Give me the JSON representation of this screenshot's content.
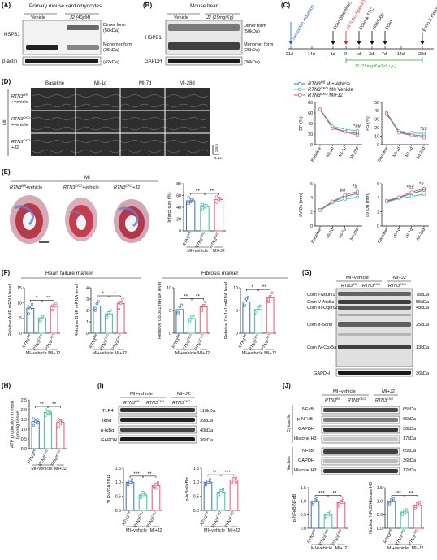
{
  "panels": {
    "A": {
      "letter": "(A)",
      "title": "Primary mouse cardiomyocytes",
      "groups": [
        "Vehicle",
        "J2 (40μM)"
      ],
      "row_labels": [
        "HSPB1",
        "β-actin"
      ],
      "band_labels": [
        "Dimer form",
        "(50kDa)",
        "Monomer form",
        "(25kDa)",
        "(42kDa)"
      ]
    },
    "B": {
      "letter": "(B)",
      "title": "Mouse heart",
      "groups": [
        "Vehicle",
        "J2 (15mg/Kg)"
      ],
      "row_labels": [
        "HSPB1",
        "GAPDH"
      ],
      "band_labels": [
        "Dimer form",
        "(50kDa)",
        "Monomer form",
        "(25kDa)",
        "(36kDa)"
      ]
    },
    "C": {
      "letter": "(C)",
      "events": [
        "Tamoxifen induction",
        "Echo (Baseline)",
        "MI (LAD ligation)",
        "Echo & TTC",
        "Histology",
        "Echo",
        "Echo & Histology"
      ],
      "ticks": [
        "-21d",
        "-14d",
        "-1d",
        "0",
        "1d",
        "3d",
        "7d",
        "-14d",
        "28d"
      ],
      "treatment": "J2 (15mg/Kg/2d, i.p.)"
    },
    "D": {
      "letter": "(D)",
      "columns": [
        "Baseline",
        "MI-1d",
        "MI-7d",
        "MI-28d"
      ],
      "side_label": "MI",
      "rows": [
        {
          "gene": "RTN3",
          "sup": "fl/fl",
          "cond": "+vehicle"
        },
        {
          "gene": "RTN3",
          "sup": "CKO",
          "cond": "+vehicle"
        },
        {
          "gene": "RTN3",
          "sup": "CKO",
          "cond": "+J2"
        }
      ],
      "scale": [
        "2mm",
        "0.1s"
      ]
    },
    "E": {
      "letter": "(E)",
      "title": "MI",
      "images": [
        {
          "gene": "RTN3",
          "sup": "fl/fl",
          "cond": "+vehicle"
        },
        {
          "gene": "RTN3",
          "sup": "CKO",
          "cond": "+vehicle"
        },
        {
          "gene": "RTN3",
          "sup": "CKO",
          "cond": "+J2"
        }
      ]
    },
    "F": {
      "letter": "(F)",
      "heart_failure_title": "Heart failure marker",
      "fibrosis_title": "Fibrosis marker"
    },
    "G": {
      "letter": "(G)",
      "groups": [
        "MI+vehicle",
        "MI+J2"
      ],
      "lanes": [
        {
          "gene": "RTN3",
          "sup": "fl/fl"
        },
        {
          "gene": "RTN3",
          "sup": "CKO"
        },
        {
          "gene": "RTN3",
          "sup": "CKO"
        }
      ],
      "left_labels": [
        "Com I-Ndufs1",
        "Com V-Atp5a",
        "Com III-Uqcrc2",
        "Com II-Sdhb",
        "Com IV-Cox5a",
        "GAPDH"
      ],
      "right_labels": [
        "78kDa",
        "55kDa",
        "48kDa",
        "25kDa",
        "13kDa",
        "36kDa"
      ]
    },
    "H": {
      "letter": "(H)"
    },
    "I": {
      "letter": "(I)",
      "groups": [
        "MI+vehicle",
        "MI+J2"
      ],
      "lanes": [
        {
          "gene": "RTN3",
          "sup": "fl/fl"
        },
        {
          "gene": "RTN3",
          "sup": "CKO"
        },
        {
          "gene": "RTN3",
          "sup": "CKO"
        }
      ],
      "left_labels": [
        "TLR4",
        "IκBα",
        "p-IκBα",
        "GAPDH"
      ],
      "right_labels": [
        "110kDa",
        "39kDa",
        "40kDa",
        "36kDa"
      ]
    },
    "J": {
      "letter": "(J)",
      "groups": [
        "MI+vehicle",
        "MI+J2"
      ],
      "lanes": [
        {
          "gene": "RTN3",
          "sup": "fl/fl"
        },
        {
          "gene": "RTN3",
          "sup": "CKO"
        },
        {
          "gene": "RTN3",
          "sup": "CKO"
        }
      ],
      "fractions": [
        "Cytosolic",
        "Nuclear"
      ],
      "left_labels": [
        "NFκB",
        "p-NFκB",
        "GAPDH",
        "Histone H3",
        "NFκB",
        "GAPDH",
        "Histone H3"
      ],
      "right_labels": [
        "65kDa",
        "65kDa",
        "36kDa",
        "17kDa",
        "65kDa",
        "36kDa",
        "17kDa"
      ]
    }
  },
  "legend_D": [
    {
      "gene": "RTN3",
      "sup": "fl/fl",
      "cond": " MI+Vehicle",
      "color": "#3a6fb5"
    },
    {
      "gene": "RTN3",
      "sup": "CKO",
      "cond": " MI+Vehicle",
      "color": "#3fbf9f"
    },
    {
      "gene": "RTN3",
      "sup": "CKO",
      "cond": " MI+J2",
      "color": "#e8566f"
    }
  ],
  "group_xlabels": {
    "g1": {
      "gene": "RTN3",
      "sup": "fl/fl"
    },
    "g2": {
      "gene": "RTN3",
      "sup": "CKO"
    },
    "g3": {
      "gene": "RTN3",
      "sup": "CKO"
    },
    "bottom": [
      "MI+vehicle",
      "MI+J2"
    ]
  },
  "colors": {
    "flfl": "#3a6fb5",
    "cko": "#3fbf9f",
    "j2": "#e8566f"
  },
  "chart_data": [
    {
      "type": "line",
      "panel": "D",
      "ylabel": "EF (%)",
      "categories": [
        "Baseline",
        "MI-1d",
        "MI-7d",
        "MI-28d"
      ],
      "ylim": [
        0,
        80
      ],
      "yticks": [
        0,
        20,
        40,
        60,
        80
      ],
      "annotation": "*##",
      "series": [
        {
          "values": [
            66,
            32,
            25,
            21
          ]
        },
        {
          "values": [
            67,
            35,
            29,
            26
          ]
        },
        {
          "values": [
            67,
            31,
            24,
            18
          ]
        }
      ]
    },
    {
      "type": "line",
      "panel": "D",
      "ylabel": "FS (%)",
      "categories": [
        "Baseline",
        "MI-1d",
        "MI-7d",
        "MI-28d"
      ],
      "ylim": [
        0,
        50
      ],
      "yticks": [
        0,
        10,
        20,
        30,
        40,
        50
      ],
      "annotation": "*##",
      "series": [
        {
          "values": [
            36,
            15,
            12,
            10
          ]
        },
        {
          "values": [
            38,
            16,
            14,
            13
          ]
        },
        {
          "values": [
            37,
            14,
            11,
            8
          ]
        }
      ]
    },
    {
      "type": "line",
      "panel": "E",
      "ylabel": "LVIDs (mm)",
      "categories": [
        "Baseline",
        "MI-1d",
        "MI-7d",
        "MI-28d"
      ],
      "ylim": [
        0,
        6
      ],
      "yticks": [
        0,
        2,
        4,
        6
      ],
      "annotations": [
        "##",
        "*#"
      ],
      "series": [
        {
          "values": [
            2.3,
            3.4,
            4.2,
            4.6
          ]
        },
        {
          "values": [
            2.2,
            3.3,
            3.8,
            4.1
          ]
        },
        {
          "values": [
            2.3,
            3.5,
            4.4,
            4.9
          ]
        }
      ]
    },
    {
      "type": "line",
      "panel": "E",
      "ylabel": "LVIDd (mm)",
      "categories": [
        "Baseline",
        "MI-1d",
        "MI-7d",
        "MI-28d"
      ],
      "ylim": [
        0,
        6
      ],
      "yticks": [
        0,
        2,
        4,
        6
      ],
      "annotations": [
        "*##",
        "*#"
      ],
      "series": [
        {
          "values": [
            3.5,
            4.0,
            4.6,
            5.1
          ]
        },
        {
          "values": [
            3.4,
            3.9,
            4.2,
            4.5
          ]
        },
        {
          "values": [
            3.6,
            4.1,
            4.8,
            5.3
          ]
        }
      ]
    },
    {
      "type": "bar",
      "panel": "E",
      "ylabel": "Infarct size (%)",
      "ylim": [
        0,
        80
      ],
      "yticks": [
        0,
        20,
        40,
        60,
        80
      ],
      "values": [
        51,
        41,
        53
      ],
      "sig": [
        "**",
        "**"
      ],
      "points": [
        [
          46,
          50,
          54,
          57,
          49
        ],
        [
          37,
          40,
          43,
          45,
          41
        ],
        [
          48,
          51,
          55,
          58,
          53
        ]
      ]
    },
    {
      "type": "bar",
      "panel": "F",
      "ylabel": "Relative ANP mRNA level",
      "ylim": [
        0,
        15
      ],
      "yticks": [
        0,
        5,
        10,
        15
      ],
      "values": [
        8.2,
        5.0,
        8.8
      ],
      "sig": [
        "*",
        "**"
      ],
      "points": [
        [
          6.5,
          8,
          9.5,
          8.8
        ],
        [
          4,
          5.5,
          5,
          4.4
        ],
        [
          7.6,
          8.8,
          9.8,
          9
        ]
      ]
    },
    {
      "type": "bar",
      "panel": "F",
      "ylabel": "Relative BNP mRNA level",
      "ylim": [
        0,
        4
      ],
      "yticks": [
        0,
        1,
        2,
        3,
        4
      ],
      "values": [
        2.4,
        1.7,
        2.6
      ],
      "sig": [
        "*",
        "*"
      ],
      "points": [
        [
          2,
          2.6,
          2.8,
          2.2
        ],
        [
          1.4,
          1.8,
          2,
          1.6
        ],
        [
          2.1,
          2.6,
          3,
          2.7
        ]
      ]
    },
    {
      "type": "bar",
      "panel": "F",
      "ylabel": "Relative Col3a1 mRNA level",
      "ylim": [
        0,
        10
      ],
      "yticks": [
        0,
        5,
        10
      ],
      "values": [
        5.2,
        3.2,
        5.8
      ],
      "sig": [
        "**",
        "**"
      ],
      "points": [
        [
          4.6,
          5.8,
          6.2,
          4.3
        ],
        [
          2.5,
          3.5,
          3.9,
          2.9
        ],
        [
          4.9,
          6.1,
          6.9,
          5.4
        ]
      ]
    },
    {
      "type": "bar",
      "panel": "F",
      "ylabel": "Relative Col1a1 mRNA level",
      "ylim": [
        0,
        10
      ],
      "yticks": [
        0,
        5,
        10
      ],
      "values": [
        6.9,
        5.2,
        7.8
      ],
      "sig": [
        "*",
        "**"
      ],
      "points": [
        [
          6,
          7.5,
          7.9,
          6.2
        ],
        [
          4.3,
          5.5,
          6,
          5
        ],
        [
          6.9,
          8,
          8.9,
          7.4
        ]
      ]
    },
    {
      "type": "bar",
      "panel": "H",
      "ylabel": "ATP production in heart (μmol/g tissue)",
      "ylim": [
        0,
        2.5
      ],
      "yticks": [
        0.0,
        0.5,
        1.0,
        1.5,
        2.0,
        2.5
      ],
      "values": [
        1.4,
        1.85,
        1.35
      ],
      "sig": [
        "**",
        "**"
      ],
      "points": [
        [
          1.2,
          1.35,
          1.5,
          1.55,
          1.4,
          1.3
        ],
        [
          1.7,
          1.8,
          1.9,
          2.0,
          1.85,
          1.75
        ],
        [
          1.1,
          1.25,
          1.4,
          1.5,
          1.35,
          1.45
        ]
      ]
    },
    {
      "type": "bar",
      "panel": "I",
      "ylabel": "TLR4/GAPDH",
      "ylim": [
        0,
        1.5
      ],
      "yticks": [
        0.0,
        0.5,
        1.0,
        1.5
      ],
      "values": [
        1.0,
        0.55,
        0.88
      ],
      "sig": [
        "***",
        "**"
      ],
      "points": [
        [
          0.95,
          1.05,
          1.1,
          0.9,
          1.0,
          1.0
        ],
        [
          0.45,
          0.55,
          0.6,
          0.5,
          0.65,
          0.55
        ],
        [
          0.8,
          0.9,
          1.0,
          0.85,
          0.78,
          0.95
        ]
      ]
    },
    {
      "type": "bar",
      "panel": "I",
      "ylabel": "p-IκBα/IκBα",
      "ylim": [
        0,
        1.5
      ],
      "yticks": [
        0.0,
        0.5,
        1.0,
        1.5
      ],
      "values": [
        1.0,
        0.65,
        1.08
      ],
      "sig": [
        "**",
        "***"
      ],
      "points": [
        [
          0.9,
          1.0,
          1.1,
          0.95,
          1.05,
          1.0
        ],
        [
          0.55,
          0.7,
          0.75,
          0.5,
          0.65,
          0.72
        ],
        [
          1.0,
          1.1,
          1.15,
          1.05,
          1.12,
          1.0
        ]
      ]
    },
    {
      "type": "bar",
      "panel": "J",
      "ylabel": "p-NFκB/NFκB",
      "ylim": [
        0,
        1.5
      ],
      "yticks": [
        0.0,
        0.5,
        1.0,
        1.5
      ],
      "values": [
        1.0,
        0.5,
        0.95
      ],
      "sig": [
        "***",
        "**"
      ],
      "points": [
        [
          0.9,
          1.05,
          1.1,
          0.95,
          1.0,
          1.0
        ],
        [
          0.4,
          0.5,
          0.6,
          0.45,
          0.55,
          0.5
        ],
        [
          0.8,
          0.95,
          1.1,
          0.9,
          1.0,
          0.95
        ]
      ]
    },
    {
      "type": "bar",
      "panel": "J",
      "ylabel": "Nuclear NFκB/Histone H3",
      "ylim": [
        0,
        1.5
      ],
      "yticks": [
        0.0,
        0.5,
        1.0,
        1.5
      ],
      "values": [
        1.0,
        0.6,
        0.85
      ],
      "sig": [
        "***",
        "**"
      ],
      "points": [
        [
          0.95,
          1.05,
          1.1,
          0.9,
          1.0,
          1.0
        ],
        [
          0.5,
          0.6,
          0.7,
          0.55,
          0.65,
          0.6
        ],
        [
          0.75,
          0.85,
          0.95,
          0.8,
          0.9,
          0.85
        ]
      ]
    }
  ]
}
